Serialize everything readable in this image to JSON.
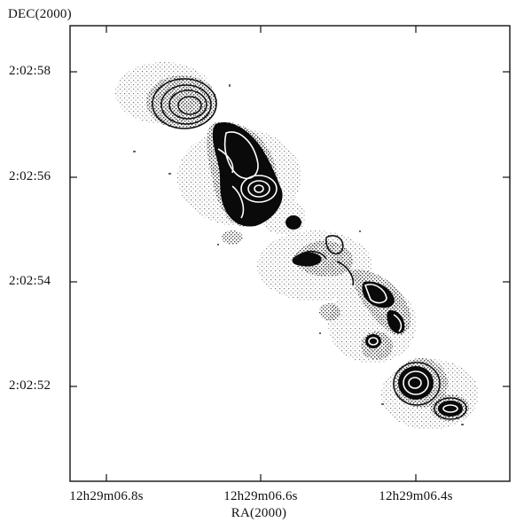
{
  "figure": {
    "y_axis_title": "DEC(2000)",
    "x_axis_title": "RA(2000)",
    "y_ticks": [
      "2:02:58",
      "2:02:56",
      "2:02:54",
      "2:02:52"
    ],
    "x_ticks": [
      "12h29m06.8s",
      "12h29m06.6s",
      "12h29m06.4s"
    ]
  }
}
